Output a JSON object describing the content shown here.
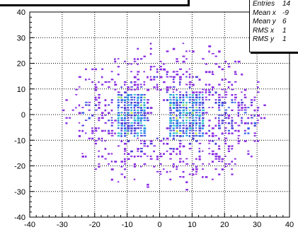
{
  "chart_data": {
    "type": "heatmap",
    "title": "",
    "xlabel": "",
    "ylabel": "",
    "xlim": [
      -40,
      40
    ],
    "ylim": [
      -40,
      40
    ],
    "x_ticks": [
      "-40",
      "-30",
      "-20",
      "-10",
      "0",
      "10",
      "20",
      "30",
      "40"
    ],
    "y_ticks": [
      "40",
      "30",
      "20",
      "10",
      "0",
      "-10",
      "-20",
      "-30",
      "-40"
    ],
    "grid": true,
    "palette": [
      "#8a2be2",
      "#4b3cd8",
      "#2c5ce8",
      "#1f8fe0",
      "#27c0c8",
      "#7fd66a",
      "#c8e63c"
    ],
    "stats": [
      {
        "label": "Entries",
        "value": "14"
      },
      {
        "label": "Mean x",
        "value": "-9"
      },
      {
        "label": "Mean y",
        "value": "6"
      },
      {
        "label": "RMS x",
        "value": "1"
      },
      {
        "label": "RMS y",
        "value": "1"
      }
    ]
  }
}
